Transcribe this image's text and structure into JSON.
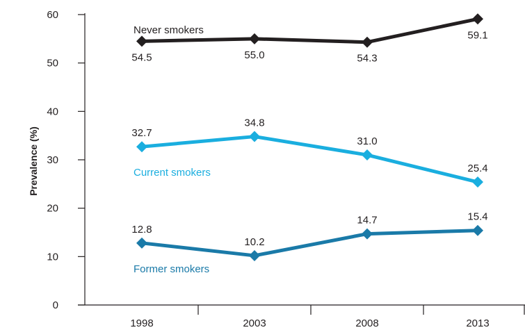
{
  "chart_data": {
    "type": "line",
    "categories": [
      "1998",
      "2003",
      "2008",
      "2013"
    ],
    "ylabel": "Prevalence (%)",
    "xlabel": "",
    "ylim": [
      0,
      60
    ],
    "yticks": [
      "0",
      "10",
      "20",
      "30",
      "40",
      "50",
      "60"
    ],
    "grid": false,
    "series": [
      {
        "name": "Never smokers",
        "color": "#231f20",
        "values": [
          54.5,
          55.0,
          54.3,
          59.1
        ],
        "labels": [
          "54.5",
          "55.0",
          "54.3",
          "59.1"
        ],
        "label_positions": [
          "below",
          "below",
          "below",
          "below"
        ]
      },
      {
        "name": "Current smokers",
        "color": "#1aaedf",
        "values": [
          32.7,
          34.8,
          31.0,
          25.4
        ],
        "labels": [
          "32.7",
          "34.8",
          "31.0",
          "25.4"
        ],
        "label_positions": [
          "above",
          "above",
          "above",
          "above"
        ]
      },
      {
        "name": "Former smokers",
        "color": "#1a7aa8",
        "values": [
          12.8,
          10.2,
          14.7,
          15.4
        ],
        "labels": [
          "12.8",
          "10.2",
          "14.7",
          "15.4"
        ],
        "label_positions": [
          "above",
          "above",
          "above",
          "above"
        ]
      }
    ]
  }
}
